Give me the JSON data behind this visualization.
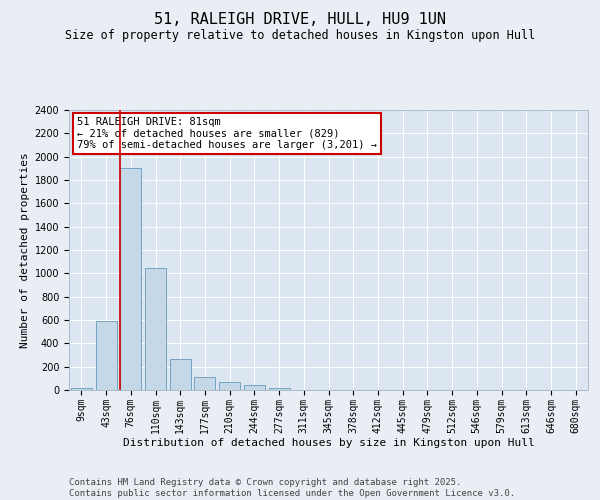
{
  "title": "51, RALEIGH DRIVE, HULL, HU9 1UN",
  "subtitle": "Size of property relative to detached houses in Kingston upon Hull",
  "xlabel": "Distribution of detached houses by size in Kingston upon Hull",
  "ylabel": "Number of detached properties",
  "categories": [
    "9sqm",
    "43sqm",
    "76sqm",
    "110sqm",
    "143sqm",
    "177sqm",
    "210sqm",
    "244sqm",
    "277sqm",
    "311sqm",
    "345sqm",
    "378sqm",
    "412sqm",
    "445sqm",
    "479sqm",
    "512sqm",
    "546sqm",
    "579sqm",
    "613sqm",
    "646sqm",
    "680sqm"
  ],
  "values": [
    20,
    590,
    1900,
    1050,
    265,
    115,
    65,
    40,
    20,
    0,
    0,
    0,
    0,
    0,
    0,
    0,
    0,
    0,
    0,
    0,
    0
  ],
  "bar_color": "#c5d8e8",
  "bar_edge_color": "#6699bb",
  "vline_color": "#cc0000",
  "vline_x_index": 2,
  "annotation_text": "51 RALEIGH DRIVE: 81sqm\n← 21% of detached houses are smaller (829)\n79% of semi-detached houses are larger (3,201) →",
  "annotation_box_facecolor": "#ffffff",
  "annotation_box_edgecolor": "#cc0000",
  "ylim": [
    0,
    2400
  ],
  "yticks": [
    0,
    200,
    400,
    600,
    800,
    1000,
    1200,
    1400,
    1600,
    1800,
    2000,
    2200,
    2400
  ],
  "bg_color": "#e8eef4",
  "plot_bg_color": "#dce6f0",
  "grid_color": "#ffffff",
  "footer": "Contains HM Land Registry data © Crown copyright and database right 2025.\nContains public sector information licensed under the Open Government Licence v3.0.",
  "title_fontsize": 11,
  "subtitle_fontsize": 8.5,
  "xlabel_fontsize": 8,
  "ylabel_fontsize": 8,
  "tick_fontsize": 7,
  "annotation_fontsize": 7.5,
  "footer_fontsize": 6.5
}
